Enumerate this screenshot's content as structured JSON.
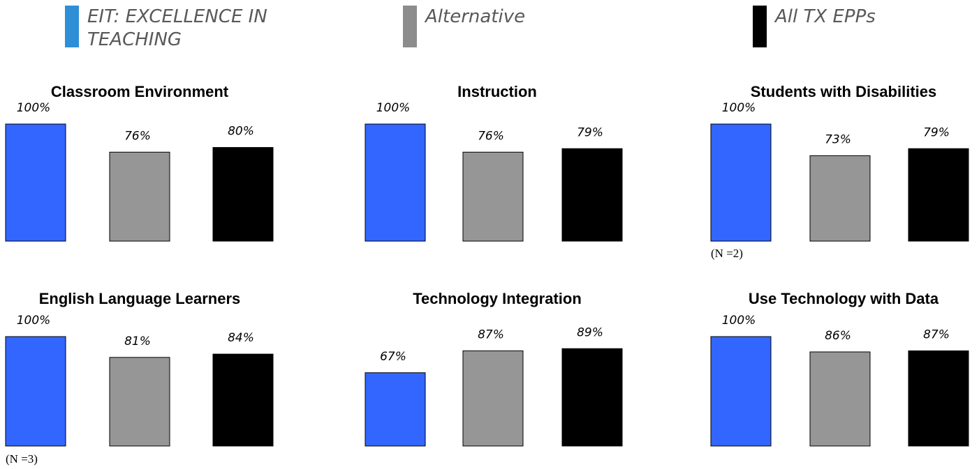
{
  "legend": {
    "items": [
      {
        "name": "EIT: EXCELLENCE IN TEACHING",
        "color": "#2e8fd6"
      },
      {
        "name": "Alternative",
        "color": "#8c8c8c"
      },
      {
        "name": "All TX EPPs",
        "color": "#000000"
      }
    ]
  },
  "chart_data": [
    {
      "type": "bar",
      "title": "Classroom Environment",
      "values": [
        100,
        76,
        80
      ],
      "value_labels": [
        "100%",
        "76%",
        "80%"
      ],
      "colors": [
        "#3366ff",
        "#969696",
        "#000000"
      ],
      "ylim": [
        0,
        100
      ]
    },
    {
      "type": "bar",
      "title": "Instruction",
      "values": [
        100,
        76,
        79
      ],
      "value_labels": [
        "100%",
        "76%",
        "79%"
      ],
      "colors": [
        "#3366ff",
        "#969696",
        "#000000"
      ],
      "ylim": [
        0,
        100
      ]
    },
    {
      "type": "bar",
      "title": "Students with Disabilities",
      "values": [
        100,
        73,
        79
      ],
      "value_labels": [
        "100%",
        "73%",
        "79%"
      ],
      "colors": [
        "#3366ff",
        "#969696",
        "#000000"
      ],
      "ylim": [
        0,
        100
      ],
      "annotation": "(N =2)"
    },
    {
      "type": "bar",
      "title": "English Language Learners",
      "values": [
        100,
        81,
        84
      ],
      "value_labels": [
        "100%",
        "81%",
        "84%"
      ],
      "colors": [
        "#3366ff",
        "#969696",
        "#000000"
      ],
      "ylim": [
        0,
        100
      ],
      "annotation": "(N =3)"
    },
    {
      "type": "bar",
      "title": "Technology Integration",
      "values": [
        67,
        87,
        89
      ],
      "value_labels": [
        "67%",
        "87%",
        "89%"
      ],
      "colors": [
        "#3366ff",
        "#969696",
        "#000000"
      ],
      "ylim": [
        0,
        100
      ]
    },
    {
      "type": "bar",
      "title": "Use Technology with Data",
      "values": [
        100,
        86,
        87
      ],
      "value_labels": [
        "100%",
        "86%",
        "87%"
      ],
      "colors": [
        "#3366ff",
        "#969696",
        "#000000"
      ],
      "ylim": [
        0,
        100
      ]
    }
  ]
}
